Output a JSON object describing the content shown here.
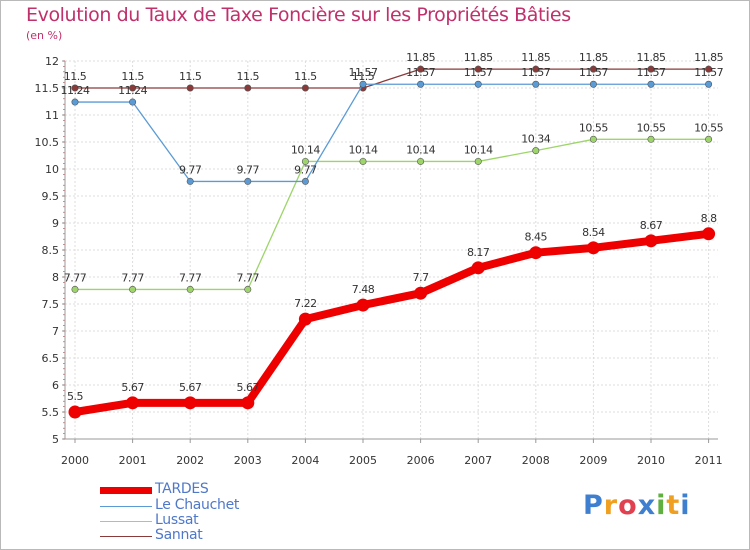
{
  "title": "Evolution du Taux de Taxe Foncière sur les Propriétés Bâties",
  "unit_label": "(en %)",
  "brand": {
    "text": "Proxiti",
    "letters": [
      "P",
      "r",
      "o",
      "x",
      "i",
      "t",
      "i"
    ],
    "colors": [
      "#3f7fcf",
      "#f0a020",
      "#e04050",
      "#3f7fcf",
      "#60b040",
      "#f0a020",
      "#3f7fcf"
    ]
  },
  "chart_data": {
    "type": "line",
    "title": "Evolution du Taux de Taxe Foncière sur les Propriétés Bâties",
    "ylabel": "(en %)",
    "xlabel": "",
    "categories": [
      "2000",
      "2001",
      "2002",
      "2003",
      "2004",
      "2005",
      "2006",
      "2007",
      "2008",
      "2009",
      "2010",
      "2011"
    ],
    "ylim": [
      5,
      12
    ],
    "yticks": [
      "5",
      "5.5",
      "6",
      "6.5",
      "7",
      "7.5",
      "8",
      "8.5",
      "9",
      "9.5",
      "10",
      "10.5",
      "11",
      "11.5",
      "12"
    ],
    "grid": true,
    "legend_position": "bottom-left",
    "series": [
      {
        "name": "TARDES",
        "color": "#ee0000",
        "thick": true,
        "values": [
          5.5,
          5.67,
          5.67,
          5.67,
          7.22,
          7.48,
          7.7,
          8.17,
          8.45,
          8.54,
          8.67,
          8.8
        ],
        "labels": [
          "5.5",
          "5.67",
          "5.67",
          "5.67",
          "7.22",
          "7.48",
          "7.7",
          "8.17",
          "8.45",
          "8.54",
          "8.67",
          "8.8"
        ]
      },
      {
        "name": "Le Chauchet",
        "color": "#5b9bd5",
        "thick": false,
        "values": [
          11.24,
          11.24,
          9.77,
          9.77,
          9.77,
          11.57,
          11.57,
          11.57,
          11.57,
          11.57,
          11.57,
          11.57
        ],
        "labels": [
          "11.24",
          "11.24",
          "9.77",
          "9.77",
          "9.77",
          "11.57",
          "11.57",
          "11.57",
          "11.57",
          "11.57",
          "11.57",
          "11.57"
        ]
      },
      {
        "name": "Lussat",
        "color": "#9ed56a",
        "thick": false,
        "values": [
          7.77,
          7.77,
          7.77,
          7.77,
          10.14,
          10.14,
          10.14,
          10.14,
          10.34,
          10.55,
          10.55,
          10.55
        ],
        "labels": [
          "7.77",
          "7.77",
          "7.77",
          "7.77",
          "10.14",
          "10.14",
          "10.14",
          "10.14",
          "10.34",
          "10.55",
          "10.55",
          "10.55"
        ]
      },
      {
        "name": "Sannat",
        "color": "#8b3a3a",
        "thick": false,
        "values": [
          11.5,
          11.5,
          11.5,
          11.5,
          11.5,
          11.5,
          11.85,
          11.85,
          11.85,
          11.85,
          11.85,
          11.85
        ],
        "labels": [
          "11.5",
          "11.5",
          "11.5",
          "11.5",
          "11.5",
          "11.5",
          "11.85",
          "11.85",
          "11.85",
          "11.85",
          "11.85",
          "11.85"
        ]
      }
    ]
  }
}
